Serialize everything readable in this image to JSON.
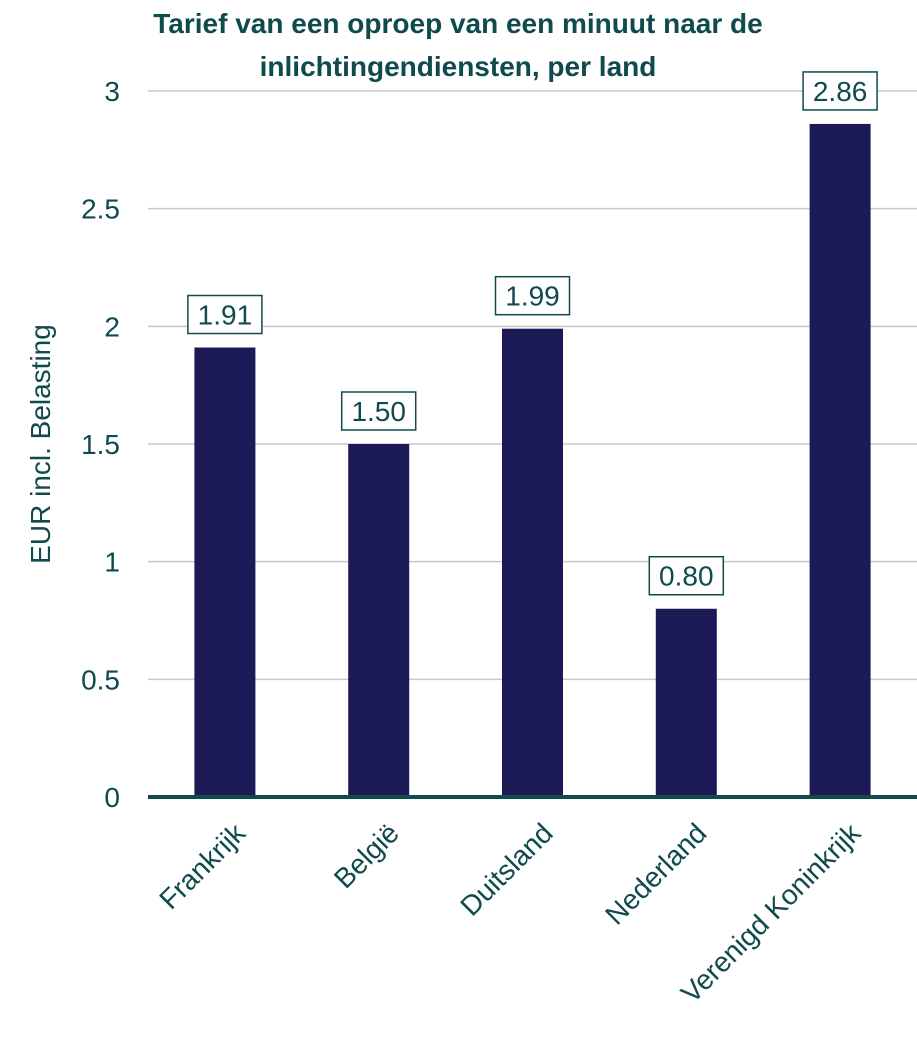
{
  "chart_data": {
    "type": "bar",
    "title_lines": [
      "Tarief van een oproep van een minuut naar de",
      "inlichtingendiensten, per land"
    ],
    "ylabel": "EUR incl. Belasting",
    "xlabel": "",
    "categories": [
      "Frankrijk",
      "België",
      "Duitsland",
      "Nederland",
      "Verenigd Koninkrijk"
    ],
    "values": [
      1.91,
      1.5,
      1.99,
      0.8,
      2.86
    ],
    "data_labels": [
      "1.91",
      "1.50",
      "1.99",
      "0.80",
      "2.86"
    ],
    "ylim": [
      0,
      3
    ],
    "yticks": [
      0,
      0.5,
      1,
      1.5,
      2,
      2.5,
      3
    ],
    "ytick_labels": [
      "0",
      "0.5",
      "1",
      "1.5",
      "2",
      "2.5",
      "3"
    ],
    "grid": true,
    "legend": false,
    "colors": {
      "bar": "#1b1a57",
      "title": "#0f4a4d",
      "text": "#0f4a4d",
      "grid": "#c8c8c8",
      "axis": "#0f4a4d",
      "label_border": "#0f4a4d"
    }
  }
}
